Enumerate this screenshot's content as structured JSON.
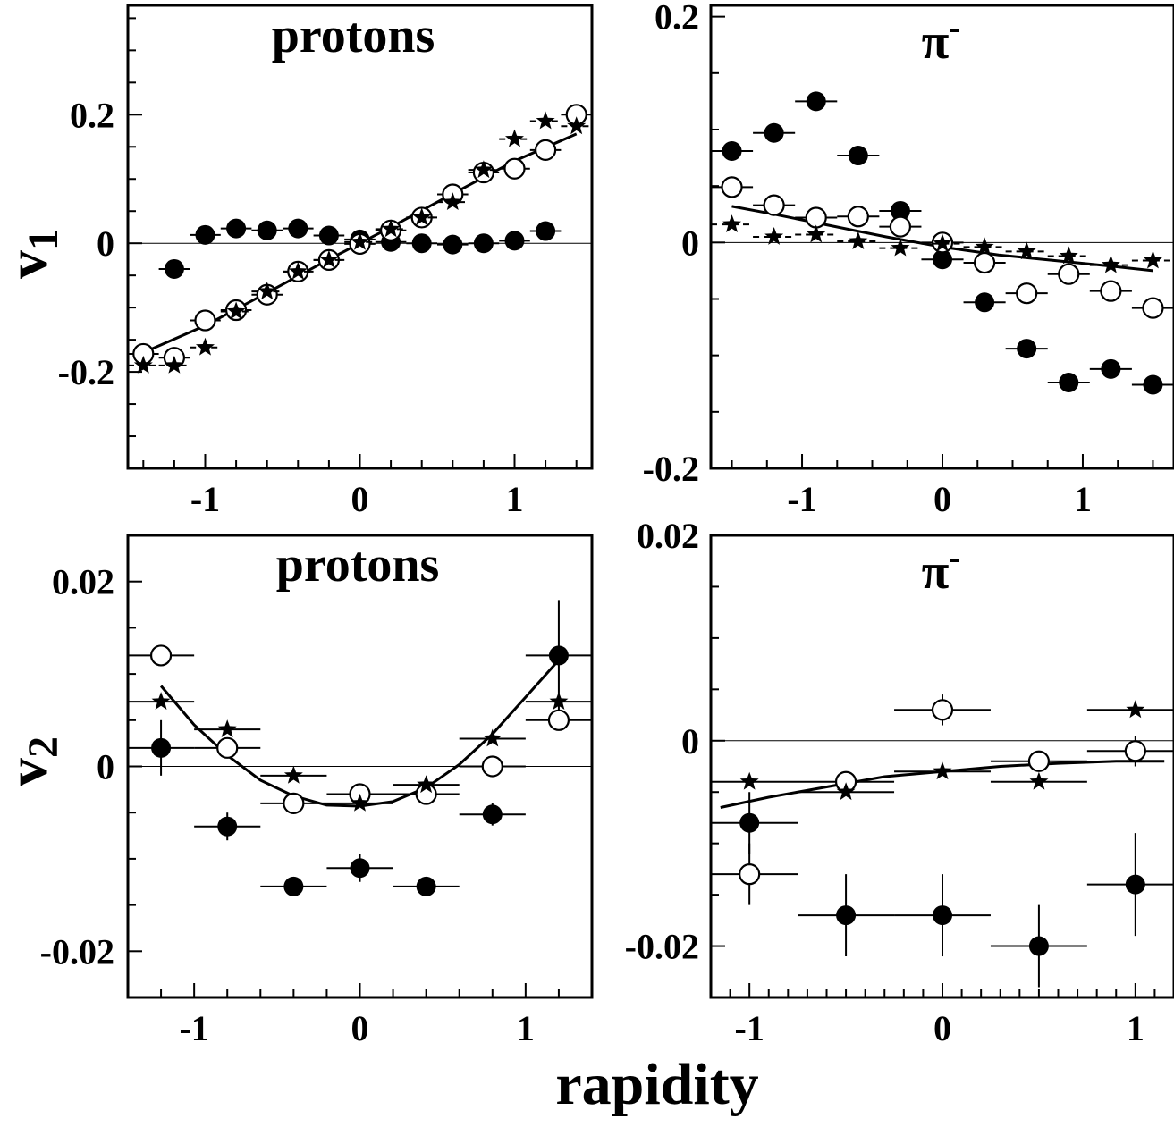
{
  "figure": {
    "xlabel": "rapidity",
    "ylabel_top": "v",
    "ylabel_top_sub": "1",
    "ylabel_bottom": "v",
    "ylabel_bottom_sub": "2"
  },
  "chart_data": [
    {
      "id": "p1",
      "type": "scatter",
      "title": "protons",
      "xlim": [
        -1.5,
        1.5
      ],
      "ylim": [
        -0.35,
        0.37
      ],
      "xticks": [
        {
          "v": -1,
          "label": "-1"
        },
        {
          "v": 0,
          "label": "0"
        },
        {
          "v": 1,
          "label": "1"
        }
      ],
      "yticks": [
        {
          "v": -0.2,
          "label": "-0.2"
        },
        {
          "v": 0,
          "label": "0"
        },
        {
          "v": 0.2,
          "label": "0.2"
        }
      ],
      "xminor": 0.2,
      "yminor": 0.05,
      "zero_line": true,
      "series": [
        {
          "marker": "filled",
          "xerr": 0.1,
          "x": [
            -1.2,
            -1.0,
            -0.8,
            -0.6,
            -0.4,
            -0.2,
            0.0,
            0.2,
            0.4,
            0.6,
            0.8,
            1.0,
            1.2
          ],
          "y": [
            -0.04,
            0.013,
            0.023,
            0.02,
            0.023,
            0.012,
            0.006,
            0.002,
            0.0,
            -0.002,
            0.0,
            0.004,
            0.019
          ]
        },
        {
          "marker": "open",
          "xerr": 0.1,
          "x": [
            -1.4,
            -1.2,
            -1.0,
            -0.8,
            -0.6,
            -0.4,
            -0.2,
            0.0,
            0.2,
            0.4,
            0.6,
            0.8,
            1.0,
            1.2,
            1.4
          ],
          "y": [
            -0.172,
            -0.178,
            -0.12,
            -0.104,
            -0.08,
            -0.044,
            -0.026,
            -0.001,
            0.02,
            0.04,
            0.076,
            0.11,
            0.116,
            0.145,
            0.2
          ]
        },
        {
          "marker": "star",
          "xerr": 0.1,
          "err_dash": true,
          "x": [
            -1.4,
            -1.2,
            -1.0,
            -0.8,
            -0.6,
            -0.4,
            -0.2,
            0.0,
            0.2,
            0.4,
            0.6,
            0.8,
            1.0,
            1.2,
            1.4
          ],
          "y": [
            -0.19,
            -0.19,
            -0.162,
            -0.106,
            -0.075,
            -0.044,
            -0.026,
            0.002,
            0.022,
            0.04,
            0.064,
            0.114,
            0.162,
            0.19,
            0.182
          ]
        }
      ],
      "curve": {
        "x": [
          -1.4,
          -1.0,
          -0.6,
          -0.2,
          0.0,
          0.2,
          0.6,
          1.0,
          1.4
        ],
        "y": [
          -0.17,
          -0.128,
          -0.077,
          -0.025,
          0.0,
          0.025,
          0.077,
          0.128,
          0.17
        ]
      }
    },
    {
      "id": "p2",
      "type": "scatter",
      "title": "π",
      "title_sup": "-",
      "xlim": [
        -1.65,
        1.65
      ],
      "ylim": [
        -0.2,
        0.21
      ],
      "xticks": [
        {
          "v": -1,
          "label": "-1"
        },
        {
          "v": 0,
          "label": "0"
        },
        {
          "v": 1,
          "label": "1"
        }
      ],
      "yticks": [
        {
          "v": -0.2,
          "label": "-0.2"
        },
        {
          "v": 0,
          "label": "0"
        },
        {
          "v": 0.2,
          "label": "0.2"
        }
      ],
      "xminor": 0.25,
      "yminor": 0.05,
      "zero_line": true,
      "series": [
        {
          "marker": "filled",
          "xerr": 0.15,
          "x": [
            -1.5,
            -1.2,
            -0.9,
            -0.6,
            -0.3,
            0.0,
            0.3,
            0.6,
            0.9,
            1.2,
            1.5
          ],
          "y": [
            0.081,
            0.097,
            0.125,
            0.077,
            0.028,
            -0.015,
            -0.053,
            -0.094,
            -0.124,
            -0.112,
            -0.126
          ]
        },
        {
          "marker": "open",
          "xerr": 0.15,
          "x": [
            -1.5,
            -1.2,
            -0.9,
            -0.6,
            -0.3,
            0.0,
            0.3,
            0.6,
            0.9,
            1.2,
            1.5
          ],
          "y": [
            0.049,
            0.033,
            0.022,
            0.023,
            0.014,
            0.0,
            -0.018,
            -0.045,
            -0.028,
            -0.043,
            -0.058
          ]
        },
        {
          "marker": "star",
          "xerr": 0.15,
          "err_dash": true,
          "x": [
            -1.5,
            -1.2,
            -0.9,
            -0.6,
            -0.3,
            0.0,
            0.3,
            0.6,
            0.9,
            1.2,
            1.5
          ],
          "y": [
            0.016,
            0.005,
            0.007,
            0.001,
            -0.005,
            -0.001,
            -0.004,
            -0.008,
            -0.012,
            -0.02,
            -0.016
          ]
        }
      ],
      "curve": {
        "x": [
          -1.5,
          -1.2,
          -0.8,
          -0.4,
          0.0,
          0.4,
          0.8,
          1.2,
          1.5
        ],
        "y": [
          0.032,
          0.025,
          0.015,
          0.005,
          -0.004,
          -0.011,
          -0.016,
          -0.021,
          -0.025
        ]
      }
    },
    {
      "id": "p3",
      "type": "scatter",
      "title": "protons",
      "xlim": [
        -1.4,
        1.4
      ],
      "ylim": [
        -0.025,
        0.025
      ],
      "xticks": [
        {
          "v": -1,
          "label": "-1"
        },
        {
          "v": 0,
          "label": "0"
        },
        {
          "v": 1,
          "label": "1"
        }
      ],
      "yticks": [
        {
          "v": -0.02,
          "label": "-0.02"
        },
        {
          "v": 0,
          "label": "0"
        },
        {
          "v": 0.02,
          "label": "0.02"
        }
      ],
      "xminor": 0.2,
      "yminor": 0.005,
      "zero_line": true,
      "series": [
        {
          "marker": "filled",
          "xerr": 0.2,
          "x": [
            -1.2,
            -0.8,
            -0.4,
            0.0,
            0.4,
            0.8,
            1.2
          ],
          "y": [
            0.002,
            -0.0065,
            -0.013,
            -0.011,
            -0.013,
            -0.0052,
            0.012
          ],
          "yerr": [
            0.003,
            0.0015,
            0.001,
            0.0015,
            0.001,
            0.0012,
            0.006
          ]
        },
        {
          "marker": "open",
          "xerr": 0.2,
          "x": [
            -1.2,
            -0.8,
            -0.4,
            0.0,
            0.4,
            0.8,
            1.2
          ],
          "y": [
            0.012,
            0.002,
            -0.004,
            -0.003,
            -0.003,
            0.0,
            0.005
          ]
        },
        {
          "marker": "star",
          "xerr": 0.2,
          "x": [
            -1.2,
            -0.8,
            -0.4,
            0.0,
            0.4,
            0.8,
            1.2
          ],
          "y": [
            0.007,
            0.004,
            -0.001,
            -0.004,
            -0.002,
            0.003,
            0.007
          ]
        }
      ],
      "curve": {
        "x": [
          -1.2,
          -1.0,
          -0.8,
          -0.6,
          -0.4,
          -0.2,
          0.0,
          0.2,
          0.4,
          0.6,
          0.8,
          1.0,
          1.2
        ],
        "y": [
          0.0087,
          0.0045,
          0.0012,
          -0.0015,
          -0.0032,
          -0.0042,
          -0.0043,
          -0.0038,
          -0.0023,
          0.0002,
          0.0035,
          0.0075,
          0.0115
        ]
      }
    },
    {
      "id": "p4",
      "type": "scatter",
      "title": "π",
      "title_sup": "-",
      "xlim": [
        -1.2,
        1.2
      ],
      "ylim": [
        -0.025,
        0.02
      ],
      "xticks": [
        {
          "v": -1,
          "label": "-1"
        },
        {
          "v": 0,
          "label": "0"
        },
        {
          "v": 1,
          "label": "1"
        }
      ],
      "yticks": [
        {
          "v": -0.02,
          "label": "-0.02"
        },
        {
          "v": 0,
          "label": "0"
        },
        {
          "v": 0.02,
          "label": "0.02"
        }
      ],
      "xminor": 0.1,
      "yminor": 0.005,
      "zero_line": true,
      "series": [
        {
          "marker": "filled",
          "xerr": 0.25,
          "x": [
            -1.0,
            -0.5,
            0.0,
            0.5,
            1.0
          ],
          "y": [
            -0.008,
            -0.017,
            -0.017,
            -0.02,
            -0.014
          ],
          "yerr": [
            0.003,
            0.004,
            0.004,
            0.004,
            0.005
          ]
        },
        {
          "marker": "open",
          "xerr": 0.25,
          "x": [
            -1.0,
            -0.5,
            0.0,
            0.5,
            1.0
          ],
          "y": [
            -0.013,
            -0.004,
            0.003,
            -0.002,
            -0.001
          ],
          "yerr": [
            0.003,
            0.001,
            0.0015,
            0.001,
            0.0015
          ]
        },
        {
          "marker": "star",
          "xerr": 0.25,
          "x": [
            -1.0,
            -0.5,
            0.0,
            0.5,
            1.0
          ],
          "y": [
            -0.004,
            -0.005,
            -0.003,
            -0.004,
            0.003
          ]
        }
      ],
      "curve": {
        "x": [
          -1.15,
          -0.9,
          -0.6,
          -0.3,
          0.0,
          0.3,
          0.6,
          0.9,
          1.15
        ],
        "y": [
          -0.0065,
          -0.0055,
          -0.0045,
          -0.0035,
          -0.003,
          -0.0025,
          -0.0022,
          -0.002,
          -0.002
        ]
      }
    }
  ]
}
